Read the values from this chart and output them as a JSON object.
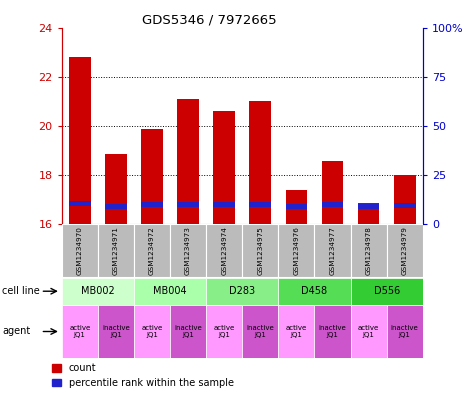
{
  "title": "GDS5346 / 7972665",
  "samples": [
    "GSM1234970",
    "GSM1234971",
    "GSM1234972",
    "GSM1234973",
    "GSM1234974",
    "GSM1234975",
    "GSM1234976",
    "GSM1234977",
    "GSM1234978",
    "GSM1234979"
  ],
  "count_values": [
    22.8,
    18.85,
    19.85,
    21.1,
    20.6,
    21.0,
    17.4,
    18.55,
    16.85,
    18.0
  ],
  "percentile_values": [
    16.72,
    16.62,
    16.68,
    16.68,
    16.68,
    16.68,
    16.62,
    16.68,
    16.62,
    16.65
  ],
  "blue_bar_heights": [
    0.2,
    0.2,
    0.2,
    0.2,
    0.2,
    0.2,
    0.2,
    0.2,
    0.2,
    0.2
  ],
  "ylim_left": [
    16,
    24
  ],
  "ylim_right": [
    0,
    100
  ],
  "yticks_left": [
    16,
    18,
    20,
    22,
    24
  ],
  "yticks_right": [
    0,
    25,
    50,
    75,
    100
  ],
  "yticklabels_right": [
    "0",
    "25",
    "50",
    "75",
    "100%"
  ],
  "bar_color_red": "#cc0000",
  "bar_color_blue": "#2222cc",
  "bar_width": 0.6,
  "cell_line_data": [
    {
      "label": "MB002",
      "start": 0,
      "end": 2,
      "color": "#ccffcc"
    },
    {
      "label": "MB004",
      "start": 2,
      "end": 4,
      "color": "#aaffaa"
    },
    {
      "label": "D283",
      "start": 4,
      "end": 6,
      "color": "#88ee88"
    },
    {
      "label": "D458",
      "start": 6,
      "end": 8,
      "color": "#55dd55"
    },
    {
      "label": "D556",
      "start": 8,
      "end": 10,
      "color": "#33cc33"
    }
  ],
  "agent_data": [
    {
      "label": "active\nJQ1",
      "color": "#ff99ff"
    },
    {
      "label": "inactive\nJQ1",
      "color": "#cc55cc"
    },
    {
      "label": "active\nJQ1",
      "color": "#ff99ff"
    },
    {
      "label": "inactive\nJQ1",
      "color": "#cc55cc"
    },
    {
      "label": "active\nJQ1",
      "color": "#ff99ff"
    },
    {
      "label": "inactive\nJQ1",
      "color": "#cc55cc"
    },
    {
      "label": "active\nJQ1",
      "color": "#ff99ff"
    },
    {
      "label": "inactive\nJQ1",
      "color": "#cc55cc"
    },
    {
      "label": "active\nJQ1",
      "color": "#ff99ff"
    },
    {
      "label": "inactive\nJQ1",
      "color": "#cc55cc"
    }
  ],
  "row_label_cellline": "cell line",
  "row_label_agent": "agent",
  "legend_red_label": "count",
  "legend_blue_label": "percentile rank within the sample",
  "background_color": "#ffffff",
  "left_axis_color": "#cc0000",
  "right_axis_color": "#0000cc",
  "sample_bg_color": "#bbbbbb",
  "grid_yticks": [
    18,
    20,
    22
  ]
}
